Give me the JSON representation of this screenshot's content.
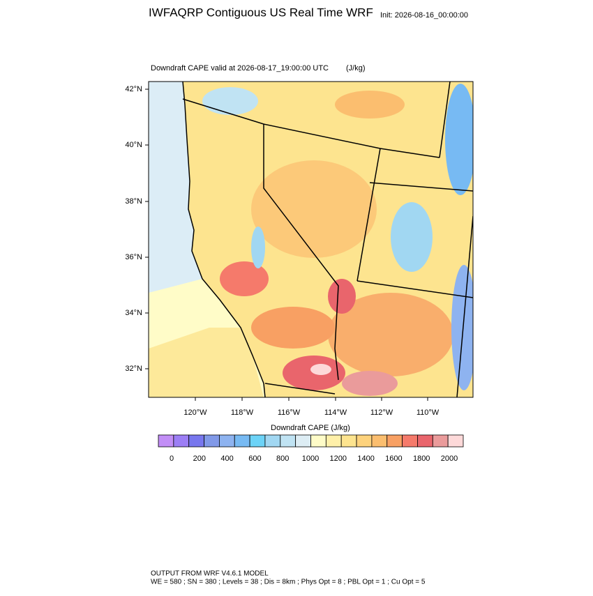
{
  "header": {
    "title": "IWFAQRP Contiguous US Real Time WRF",
    "init": "Init: 2026-08-16_00:00:00"
  },
  "map": {
    "subtitle": "Downdraft CAPE valid at 2026-08-17_19:00:00 UTC",
    "units": "(J/kg)",
    "lat_labels": [
      "42°N",
      "40°N",
      "38°N",
      "36°N",
      "34°N",
      "32°N"
    ],
    "lon_labels": [
      "120°W",
      "118°W",
      "116°W",
      "114°W",
      "112°W",
      "110°W"
    ]
  },
  "colorbar": {
    "title": "Downdraft CAPE  (J/kg)",
    "colors": [
      "#c28ef6",
      "#9c7ef5",
      "#7877ee",
      "#8199e8",
      "#8eb3f0",
      "#77baf3",
      "#6cd3f7",
      "#a1d7f2",
      "#c0e3f3",
      "#ddedf4",
      "#fffcc8",
      "#fff0a9",
      "#fde48f",
      "#fdd27c",
      "#fbbe6f",
      "#f8a063",
      "#f57a6b",
      "#e9656c",
      "#ea9b9b",
      "#fdd9d9"
    ],
    "ticks": [
      0,
      200,
      400,
      600,
      800,
      1000,
      1200,
      1400,
      1600,
      1800,
      2000
    ]
  },
  "footer": {
    "line1": "OUTPUT FROM WRF V4.6.1 MODEL",
    "line2": "WE = 580 ; SN = 380 ; Levels = 38 ; Dis = 8km ; Phys Opt = 8 ; PBL Opt = 1 ; Cu Opt = 5"
  }
}
